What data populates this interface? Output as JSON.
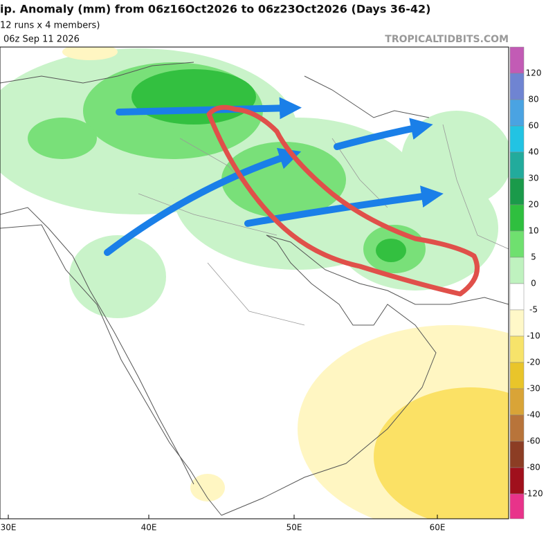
{
  "header": {
    "title": "ip. Anomaly (mm) from 06z16Oct2026 to 06z23Oct2026 (Days 36-42)",
    "subtitle": "12 runs x 4 members)",
    "init": "06z Sep 11 2026",
    "watermark": "TROPICALTIDBITS.COM"
  },
  "colorbar": {
    "labels": [
      "120",
      "80",
      "60",
      "40",
      "30",
      "20",
      "10",
      "5",
      "0",
      "-5",
      "-10",
      "-20",
      "-30",
      "-40",
      "-60",
      "-80",
      "-120"
    ],
    "colors": [
      "#c25bb5",
      "#6f84d2",
      "#4aa3e2",
      "#22c3e3",
      "#22ab9c",
      "#1a9a4a",
      "#2fbf3f",
      "#6fe06f",
      "#bff2bf",
      "#ffffff",
      "#fff8c8",
      "#f7e36a",
      "#e9c52a",
      "#d9a437",
      "#b8743a",
      "#8c3d24",
      "#a0101c",
      "#e8338a"
    ]
  },
  "map": {
    "longitudes": [
      "30E",
      "40E",
      "50E",
      "60E"
    ]
  }
}
